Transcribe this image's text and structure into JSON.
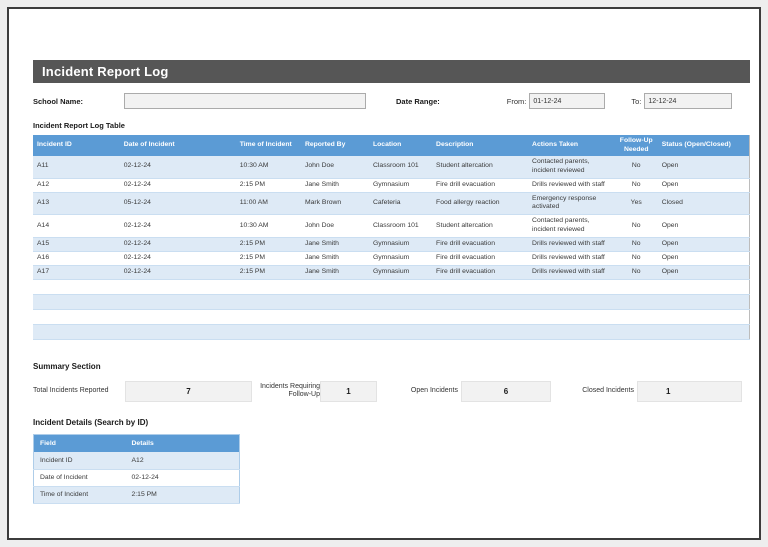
{
  "title": "Incident Report Log",
  "form": {
    "school_name_label": "School Name:",
    "school_name_value": "",
    "date_range_label": "Date Range:",
    "from_label": "From:",
    "from_value": "01-12-24",
    "to_label": "To:",
    "to_value": "12-12-24"
  },
  "log_table": {
    "heading": "Incident Report Log Table",
    "columns": [
      "Incident ID",
      "Date of Incident",
      "Time of Incident",
      "Reported By",
      "Location",
      "Description",
      "Actions Taken",
      "Follow-Up Needed",
      "Status (Open/Closed)"
    ],
    "rows": [
      [
        "A11",
        "02-12-24",
        "10:30 AM",
        "John Doe",
        "Classroom 101",
        "Student altercation",
        "Contacted parents, incident reviewed",
        "No",
        "Open"
      ],
      [
        "A12",
        "02-12-24",
        "2:15 PM",
        "Jane Smith",
        "Gymnasium",
        "Fire drill evacuation",
        "Drills reviewed with staff",
        "No",
        "Open"
      ],
      [
        "A13",
        "05-12-24",
        "11:00 AM",
        "Mark Brown",
        "Cafeteria",
        "Food allergy reaction",
        "Emergency response activated",
        "Yes",
        "Closed"
      ],
      [
        "A14",
        "02-12-24",
        "10:30 AM",
        "John Doe",
        "Classroom 101",
        "Student altercation",
        "Contacted parents, incident reviewed",
        "No",
        "Open"
      ],
      [
        "A15",
        "02-12-24",
        "2:15 PM",
        "Jane Smith",
        "Gymnasium",
        "Fire drill evacuation",
        "Drills reviewed with staff",
        "No",
        "Open"
      ],
      [
        "A16",
        "02-12-24",
        "2:15 PM",
        "Jane Smith",
        "Gymnasium",
        "Fire drill evacuation",
        "Drills reviewed with staff",
        "No",
        "Open"
      ],
      [
        "A17",
        "02-12-24",
        "2:15 PM",
        "Jane Smith",
        "Gymnasium",
        "Fire drill evacuation",
        "Drills reviewed with staff",
        "No",
        "Open"
      ]
    ],
    "empty_row_count": 4
  },
  "summary": {
    "heading": "Summary Section",
    "items": [
      {
        "label": "Total Incidents Reported",
        "value": "7"
      },
      {
        "label": "Incidents Requiring Follow-Up",
        "value": "1"
      },
      {
        "label": "Open Incidents",
        "value": "6"
      },
      {
        "label": "Closed Incidents",
        "value": "1"
      }
    ]
  },
  "details": {
    "heading": "Incident Details (Search by ID)",
    "columns": [
      "Field",
      "Details"
    ],
    "rows": [
      [
        "Incident ID",
        "A12"
      ],
      [
        "Date of Incident",
        "02-12-24"
      ],
      [
        "Time of Incident",
        "2:15 PM"
      ]
    ]
  },
  "colors": {
    "table_header_blue": "#5B9BD5",
    "alt_row_blue": "#DEEAF6",
    "title_bar_gray": "#565656",
    "input_fill_gray": "#F2F2F2"
  }
}
